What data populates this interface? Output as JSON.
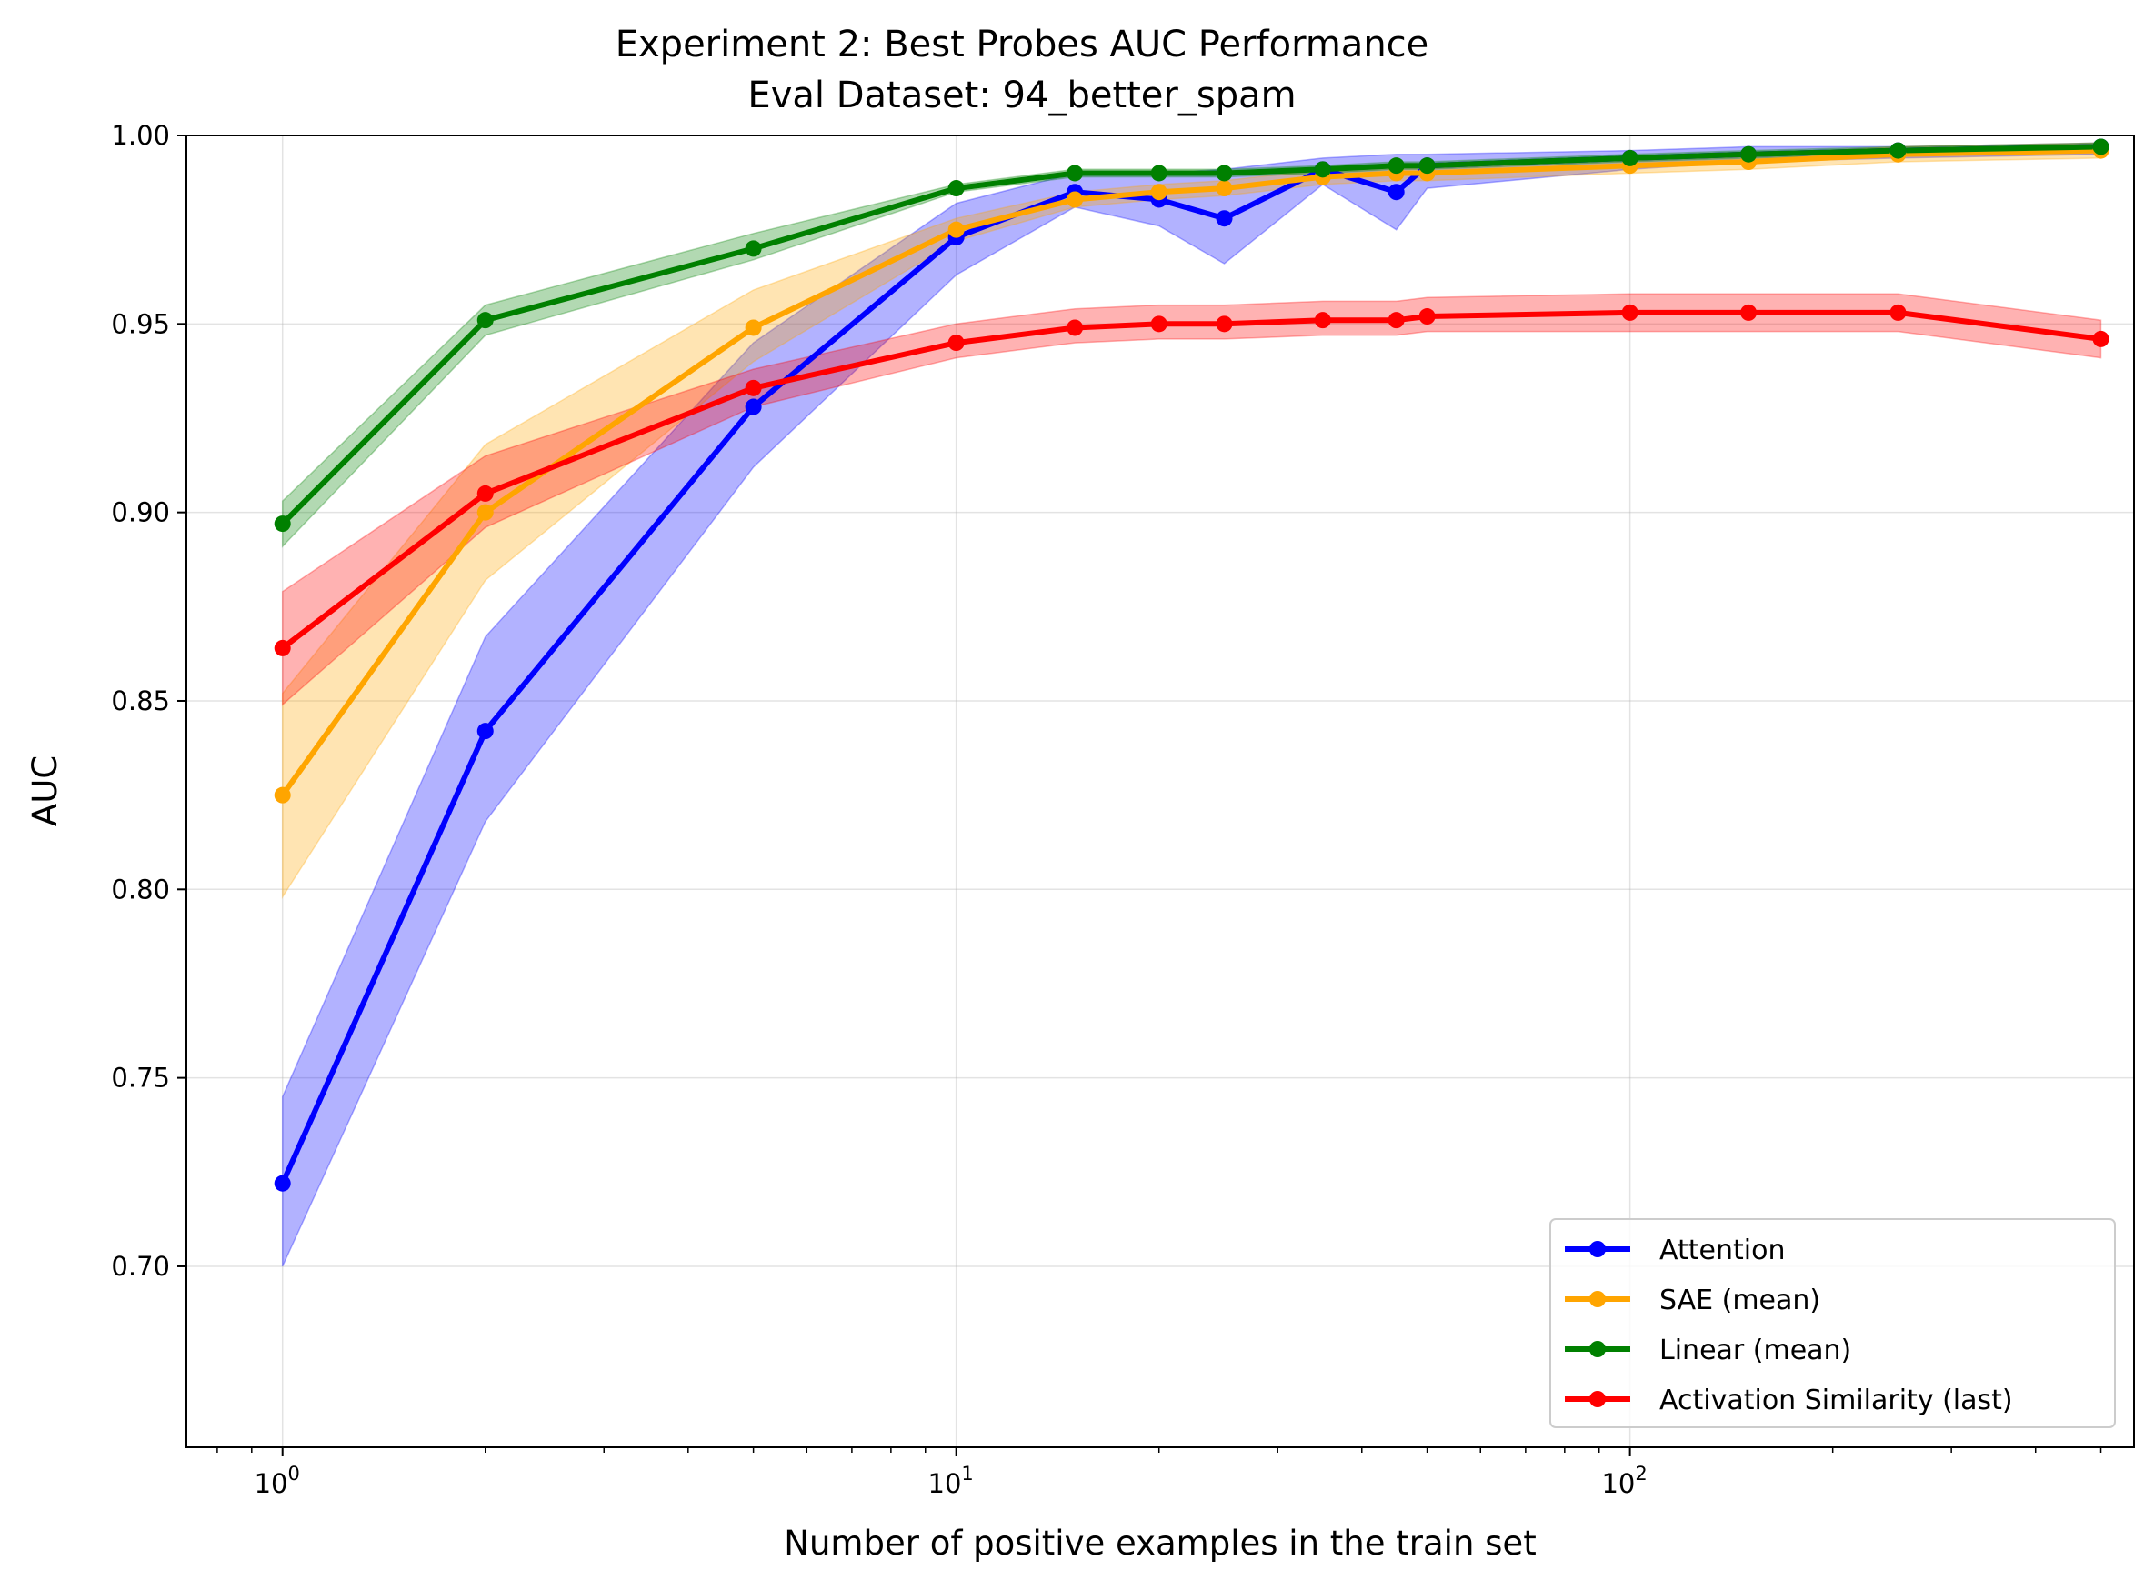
{
  "chart_data": {
    "type": "line",
    "title": "Experiment 2: Best Probes AUC Performance",
    "subtitle": "Eval Dataset: 94_better_spam",
    "xlabel": "Number of positive examples in the train set",
    "ylabel": "AUC",
    "xscale": "log",
    "xlim": [
      0.72,
      560
    ],
    "ylim": [
      0.652,
      1.0
    ],
    "x_ticks": [
      {
        "value": 1,
        "base": "10",
        "exp": "0"
      },
      {
        "value": 10,
        "base": "10",
        "exp": "1"
      },
      {
        "value": 100,
        "base": "10",
        "exp": "2"
      }
    ],
    "y_ticks": [
      {
        "value": 0.7,
        "label": "0.70"
      },
      {
        "value": 0.75,
        "label": "0.75"
      },
      {
        "value": 0.8,
        "label": "0.80"
      },
      {
        "value": 0.85,
        "label": "0.85"
      },
      {
        "value": 0.9,
        "label": "0.90"
      },
      {
        "value": 0.95,
        "label": "0.95"
      },
      {
        "value": 1.0,
        "label": "1.00"
      }
    ],
    "grid": true,
    "legend_position": "lower-right",
    "series": [
      {
        "name": "Attention",
        "color": "#0000ff",
        "x": [
          1,
          2,
          5,
          10,
          15,
          20,
          25,
          35,
          45,
          50,
          100,
          150,
          250,
          500
        ],
        "y": [
          0.722,
          0.842,
          0.928,
          0.973,
          0.985,
          0.983,
          0.978,
          0.991,
          0.985,
          0.992,
          0.994,
          0.995,
          0.996,
          0.997
        ],
        "lower": [
          0.7,
          0.818,
          0.912,
          0.963,
          0.981,
          0.976,
          0.966,
          0.987,
          0.975,
          0.986,
          0.991,
          0.993,
          0.994,
          0.995
        ],
        "upper": [
          0.745,
          0.867,
          0.945,
          0.982,
          0.99,
          0.99,
          0.991,
          0.994,
          0.995,
          0.995,
          0.996,
          0.997,
          0.997,
          0.998
        ]
      },
      {
        "name": "SAE (mean)",
        "color": "#ffa500",
        "x": [
          1,
          2,
          5,
          10,
          15,
          20,
          25,
          35,
          45,
          50,
          100,
          150,
          250,
          500
        ],
        "y": [
          0.825,
          0.9,
          0.949,
          0.975,
          0.983,
          0.985,
          0.986,
          0.989,
          0.99,
          0.99,
          0.992,
          0.993,
          0.995,
          0.996
        ],
        "lower": [
          0.798,
          0.882,
          0.94,
          0.972,
          0.981,
          0.983,
          0.984,
          0.987,
          0.988,
          0.988,
          0.99,
          0.991,
          0.993,
          0.994
        ],
        "upper": [
          0.852,
          0.918,
          0.959,
          0.978,
          0.985,
          0.987,
          0.988,
          0.991,
          0.992,
          0.992,
          0.994,
          0.995,
          0.997,
          0.998
        ]
      },
      {
        "name": "Linear (mean)",
        "color": "#008000",
        "x": [
          1,
          2,
          5,
          10,
          15,
          20,
          25,
          35,
          45,
          50,
          100,
          150,
          250,
          500
        ],
        "y": [
          0.897,
          0.951,
          0.97,
          0.986,
          0.99,
          0.99,
          0.99,
          0.991,
          0.992,
          0.992,
          0.994,
          0.995,
          0.996,
          0.997
        ],
        "lower": [
          0.891,
          0.947,
          0.967,
          0.985,
          0.989,
          0.989,
          0.989,
          0.99,
          0.991,
          0.991,
          0.993,
          0.994,
          0.995,
          0.996
        ],
        "upper": [
          0.903,
          0.955,
          0.974,
          0.987,
          0.991,
          0.991,
          0.991,
          0.992,
          0.993,
          0.993,
          0.995,
          0.996,
          0.997,
          0.998
        ]
      },
      {
        "name": "Activation Similarity (last)",
        "color": "#ff0000",
        "x": [
          1,
          2,
          5,
          10,
          15,
          20,
          25,
          35,
          45,
          50,
          100,
          150,
          250,
          500
        ],
        "y": [
          0.864,
          0.905,
          0.933,
          0.945,
          0.949,
          0.95,
          0.95,
          0.951,
          0.951,
          0.952,
          0.953,
          0.953,
          0.953,
          0.946
        ],
        "lower": [
          0.849,
          0.896,
          0.928,
          0.941,
          0.945,
          0.946,
          0.946,
          0.947,
          0.947,
          0.948,
          0.948,
          0.948,
          0.948,
          0.941
        ],
        "upper": [
          0.879,
          0.915,
          0.938,
          0.95,
          0.954,
          0.955,
          0.955,
          0.956,
          0.956,
          0.957,
          0.958,
          0.958,
          0.958,
          0.951
        ]
      }
    ]
  }
}
